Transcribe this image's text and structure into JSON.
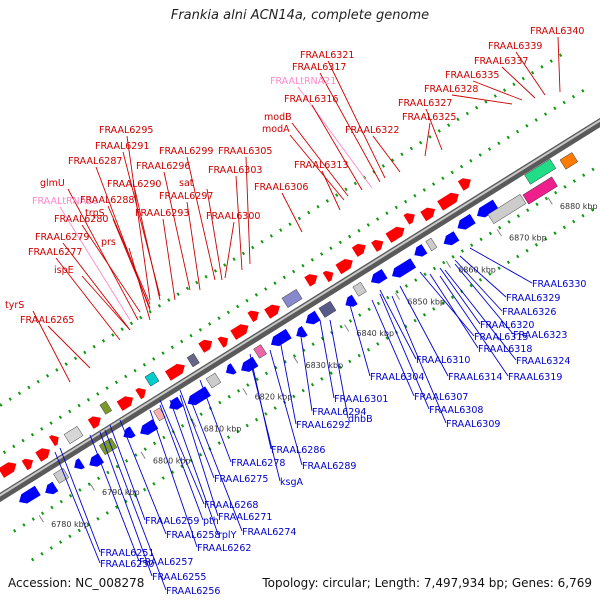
{
  "title": "Frankia alni ACN14a, complete genome",
  "footer": {
    "accession": "Accession: NC_008278",
    "summary": "Topology: circular; Length: 7,497,934 bp; Genes: 6,769"
  },
  "colors": {
    "forward_label": "#cc0000",
    "reverse_label": "#0000cc",
    "trna_label": "#ff88cc",
    "forward_arrow": "#ff0000",
    "reverse_arrow": "#0000ff",
    "backbone": "#888888",
    "dots": "#119911"
  },
  "scale_ticks": [
    "6780 kbp",
    "6790 kbp",
    "6800 kbp",
    "6810 kbp",
    "6820 kbp",
    "6830 kbp",
    "6840 kbp",
    "6850 kbp",
    "6860 kbp",
    "6870 kbp",
    "6880 kbp"
  ],
  "forward_labels": [
    {
      "text": "FRAAL6340",
      "kind": "gene"
    },
    {
      "text": "FRAAL6339",
      "kind": "gene"
    },
    {
      "text": "FRAAL6337",
      "kind": "gene"
    },
    {
      "text": "FRAAL6335",
      "kind": "gene"
    },
    {
      "text": "FRAAL6328",
      "kind": "gene"
    },
    {
      "text": "FRAAL6327",
      "kind": "gene"
    },
    {
      "text": "FRAAL6325",
      "kind": "gene"
    },
    {
      "text": "FRAAL6321",
      "kind": "gene"
    },
    {
      "text": "FRAAL6317",
      "kind": "gene"
    },
    {
      "text": "FRAALtRNA21",
      "kind": "trna"
    },
    {
      "text": "FRAAL6316",
      "kind": "gene"
    },
    {
      "text": "modB",
      "kind": "gene"
    },
    {
      "text": "modA",
      "kind": "gene"
    },
    {
      "text": "FRAAL6322",
      "kind": "gene"
    },
    {
      "text": "FRAAL6313",
      "kind": "gene"
    },
    {
      "text": "FRAAL6295",
      "kind": "gene"
    },
    {
      "text": "FRAAL6291",
      "kind": "gene"
    },
    {
      "text": "FRAAL6299",
      "kind": "gene"
    },
    {
      "text": "FRAAL6305",
      "kind": "gene"
    },
    {
      "text": "FRAAL6287",
      "kind": "gene"
    },
    {
      "text": "FRAAL6296",
      "kind": "gene"
    },
    {
      "text": "FRAAL6303",
      "kind": "gene"
    },
    {
      "text": "glmU",
      "kind": "gene"
    },
    {
      "text": "FRAAL6290",
      "kind": "gene"
    },
    {
      "text": "sat",
      "kind": "gene"
    },
    {
      "text": "FRAAL6297",
      "kind": "gene"
    },
    {
      "text": "FRAAL6306",
      "kind": "gene"
    },
    {
      "text": "FRAALtRNA20",
      "kind": "trna"
    },
    {
      "text": "FRAAL6288",
      "kind": "gene"
    },
    {
      "text": "trpS",
      "kind": "gene"
    },
    {
      "text": "FRAAL6293",
      "kind": "gene"
    },
    {
      "text": "FRAAL6300",
      "kind": "gene"
    },
    {
      "text": "FRAAL6280",
      "kind": "gene"
    },
    {
      "text": "FRAAL6279",
      "kind": "gene"
    },
    {
      "text": "prs",
      "kind": "gene"
    },
    {
      "text": "FRAAL6277",
      "kind": "gene"
    },
    {
      "text": "ispE",
      "kind": "gene"
    },
    {
      "text": "tyrS",
      "kind": "gene"
    },
    {
      "text": "FRAAL6265",
      "kind": "gene"
    }
  ],
  "reverse_labels": [
    {
      "text": "FRAAL6330"
    },
    {
      "text": "FRAAL6329"
    },
    {
      "text": "FRAAL6326"
    },
    {
      "text": "FRAAL6320"
    },
    {
      "text": "FRAAL6323"
    },
    {
      "text": "FRAAL6315"
    },
    {
      "text": "FRAAL6318"
    },
    {
      "text": "FRAAL6324"
    },
    {
      "text": "FRAAL6310"
    },
    {
      "text": "FRAAL6319"
    },
    {
      "text": "FRAAL6314"
    },
    {
      "text": "FRAAL6304"
    },
    {
      "text": "FRAAL6301"
    },
    {
      "text": "FRAAL6307"
    },
    {
      "text": "FRAAL6294"
    },
    {
      "text": "FRAAL6308"
    },
    {
      "text": "FRAAL6292"
    },
    {
      "text": "dhbB"
    },
    {
      "text": "FRAAL6309"
    },
    {
      "text": "FRAAL6286"
    },
    {
      "text": "FRAAL6289"
    },
    {
      "text": "FRAAL6278"
    },
    {
      "text": "ksgA"
    },
    {
      "text": "FRAAL6275"
    },
    {
      "text": "FRAAL6268"
    },
    {
      "text": "FRAAL6271"
    },
    {
      "text": "FRAAL6259"
    },
    {
      "text": "pth"
    },
    {
      "text": "FRAAL6274"
    },
    {
      "text": "FRAAL6258"
    },
    {
      "text": "rplY"
    },
    {
      "text": "FRAAL6262"
    },
    {
      "text": "FRAAL6251"
    },
    {
      "text": "FRAAL6250"
    },
    {
      "text": "FRAAL6257"
    },
    {
      "text": "FRAAL6255"
    },
    {
      "text": "FRAAL6256"
    }
  ]
}
